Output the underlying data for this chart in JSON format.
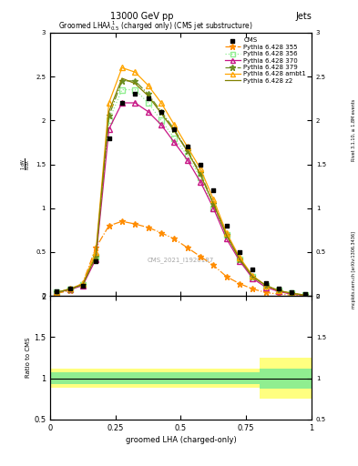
{
  "title_top": "13000 GeV pp",
  "title_right": "Jets",
  "plot_title": "Groomed LHA$\\lambda^{1}_{0.5}$ (charged only) (CMS jet substructure)",
  "xlabel": "groomed LHA (charged-only)",
  "ylabel_main": "$\\frac{1}{N}\\frac{dN}{d\\lambda}$",
  "ylabel_ratio": "Ratio to CMS",
  "watermark": "CMS_2021_I1920187",
  "right_label_top": "Rivet 3.1.10, ≥ 1.8M events",
  "right_label_bottom": "mcplots.cern.ch [arXiv:1306.3436]",
  "x_bins": [
    0.0,
    0.05,
    0.1,
    0.15,
    0.2,
    0.25,
    0.3,
    0.35,
    0.4,
    0.45,
    0.5,
    0.55,
    0.6,
    0.65,
    0.7,
    0.75,
    0.8,
    0.85,
    0.9,
    0.95,
    1.0
  ],
  "cms_y": [
    0.05,
    0.08,
    0.12,
    0.4,
    1.8,
    2.2,
    2.3,
    2.25,
    2.1,
    1.9,
    1.7,
    1.5,
    1.2,
    0.8,
    0.5,
    0.3,
    0.15,
    0.08,
    0.04,
    0.02
  ],
  "p355_y": [
    0.03,
    0.06,
    0.15,
    0.55,
    0.8,
    0.85,
    0.82,
    0.78,
    0.72,
    0.65,
    0.55,
    0.45,
    0.35,
    0.22,
    0.14,
    0.08,
    0.04,
    0.02,
    0.01,
    0.005
  ],
  "p355_color": "#FF8C00",
  "p355_style": "-.",
  "p355_marker": "*",
  "p355_label": "Pythia 6.428 355",
  "p356_y": [
    0.04,
    0.07,
    0.13,
    0.45,
    2.0,
    2.35,
    2.35,
    2.2,
    2.0,
    1.8,
    1.6,
    1.35,
    1.0,
    0.7,
    0.42,
    0.22,
    0.12,
    0.06,
    0.03,
    0.01
  ],
  "p356_color": "#90EE90",
  "p356_style": ":",
  "p356_marker": "s",
  "p356_label": "Pythia 6.428 356",
  "p370_y": [
    0.04,
    0.07,
    0.12,
    0.42,
    1.9,
    2.2,
    2.2,
    2.1,
    1.95,
    1.75,
    1.55,
    1.3,
    1.0,
    0.65,
    0.4,
    0.2,
    0.1,
    0.05,
    0.02,
    0.01
  ],
  "p370_color": "#C71585",
  "p370_style": "-",
  "p370_marker": "^",
  "p370_label": "Pythia 6.428 370",
  "p379_y": [
    0.04,
    0.07,
    0.13,
    0.45,
    2.05,
    2.45,
    2.45,
    2.3,
    2.1,
    1.9,
    1.65,
    1.4,
    1.05,
    0.7,
    0.42,
    0.22,
    0.12,
    0.06,
    0.03,
    0.01
  ],
  "p379_color": "#6B8E23",
  "p379_style": "-.",
  "p379_marker": "*",
  "p379_label": "Pythia 6.428 379",
  "pambt1_y": [
    0.04,
    0.08,
    0.14,
    0.5,
    2.2,
    2.6,
    2.55,
    2.4,
    2.2,
    1.95,
    1.7,
    1.45,
    1.1,
    0.72,
    0.44,
    0.23,
    0.12,
    0.06,
    0.03,
    0.01
  ],
  "pambt1_color": "#FFA500",
  "pambt1_style": "-",
  "pambt1_marker": "^",
  "pambt1_label": "Pythia 6.428 ambt1",
  "pz2_y": [
    0.04,
    0.08,
    0.13,
    0.46,
    2.1,
    2.48,
    2.42,
    2.28,
    2.08,
    1.88,
    1.65,
    1.38,
    1.05,
    0.69,
    0.42,
    0.22,
    0.12,
    0.06,
    0.03,
    0.01
  ],
  "pz2_color": "#808000",
  "pz2_style": "-",
  "pz2_marker": "",
  "pz2_label": "Pythia 6.428 z2",
  "ratio_green_lo": [
    0.93,
    0.93,
    0.93,
    0.93,
    0.93,
    0.93,
    0.93,
    0.93,
    0.93,
    0.93,
    0.93,
    0.93,
    0.93,
    0.93,
    0.93,
    0.93,
    0.87,
    0.87,
    0.87,
    0.87
  ],
  "ratio_green_hi": [
    1.07,
    1.07,
    1.07,
    1.07,
    1.07,
    1.07,
    1.07,
    1.07,
    1.07,
    1.07,
    1.07,
    1.07,
    1.07,
    1.07,
    1.07,
    1.07,
    1.12,
    1.12,
    1.12,
    1.12
  ],
  "ratio_yellow_lo": [
    0.88,
    0.88,
    0.88,
    0.88,
    0.88,
    0.88,
    0.88,
    0.88,
    0.88,
    0.88,
    0.88,
    0.88,
    0.88,
    0.88,
    0.88,
    0.88,
    0.75,
    0.75,
    0.75,
    0.75
  ],
  "ratio_yellow_hi": [
    1.12,
    1.12,
    1.12,
    1.12,
    1.12,
    1.12,
    1.12,
    1.12,
    1.12,
    1.12,
    1.12,
    1.12,
    1.12,
    1.12,
    1.12,
    1.12,
    1.25,
    1.25,
    1.25,
    1.25
  ],
  "ylim_main": [
    0,
    3.0
  ],
  "ylim_ratio": [
    0.5,
    2.0
  ],
  "xlim": [
    0,
    1.0
  ]
}
